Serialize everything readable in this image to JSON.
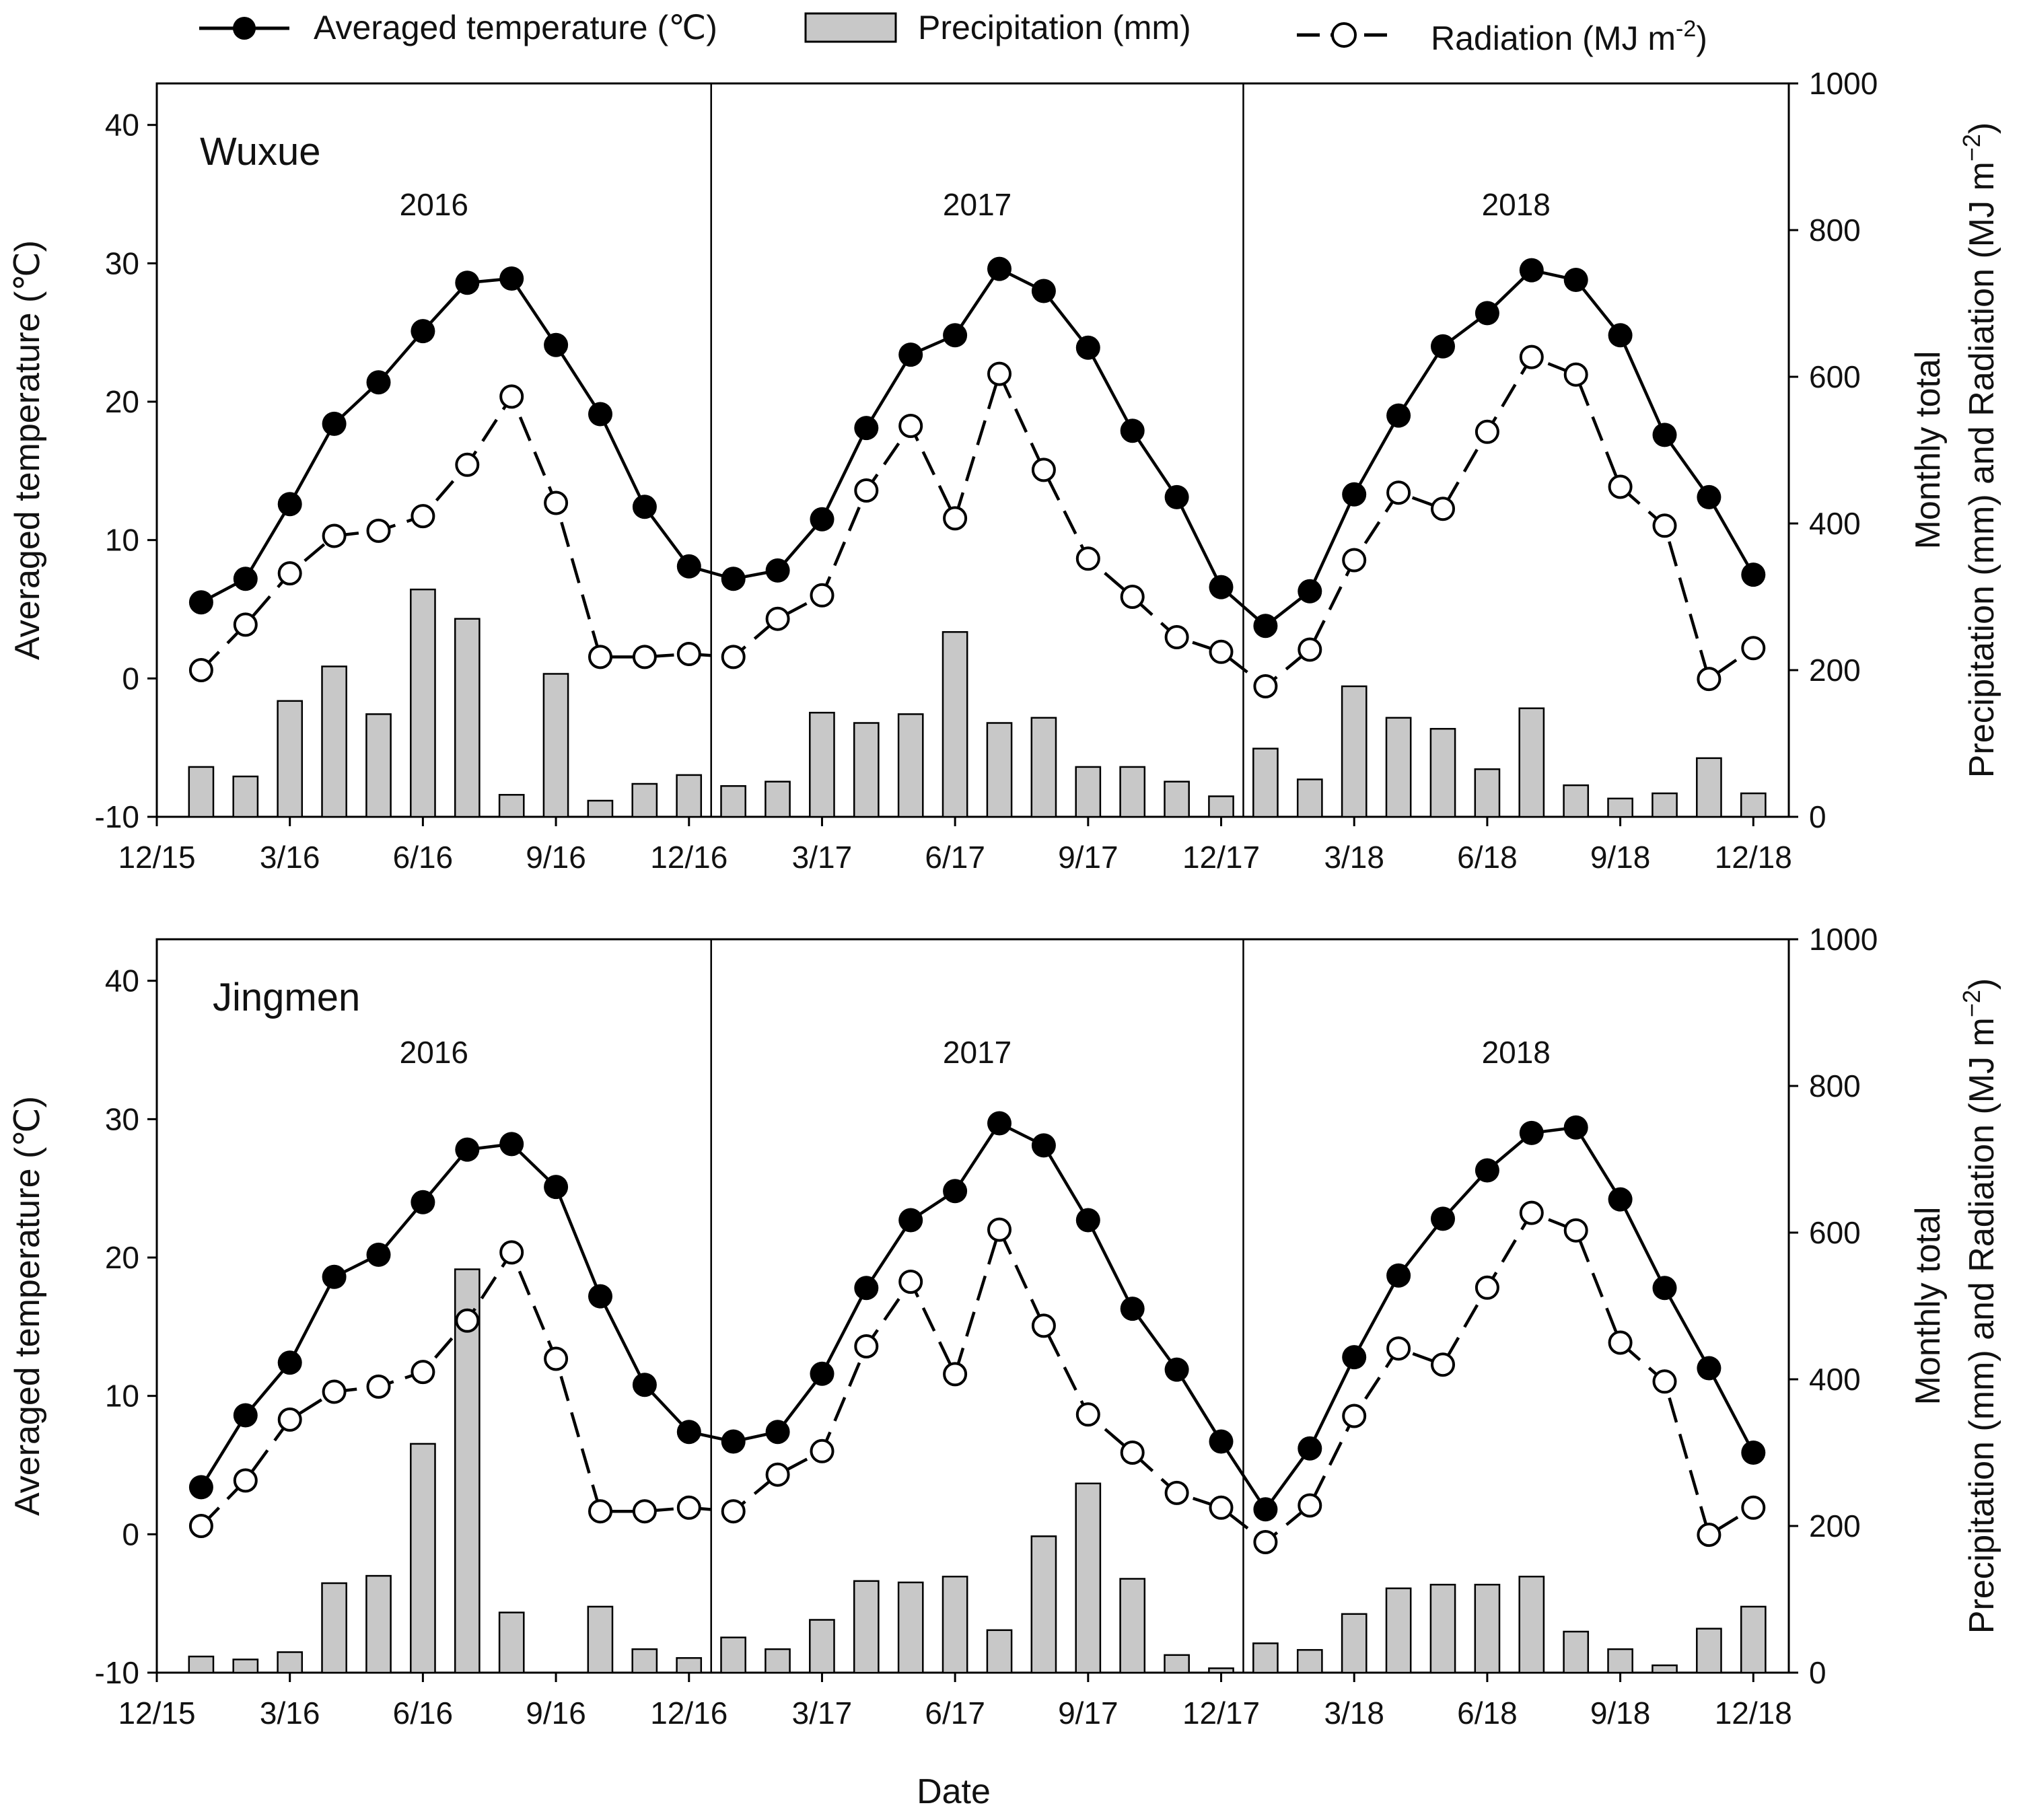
{
  "legend": {
    "temperature": "Averaged temperature (℃)",
    "precipitation": "Precipitation (mm)",
    "radiation_text": "Radiation (MJ m",
    "radiation_sup": "-2",
    "radiation_close": ")"
  },
  "axes": {
    "left_title": "Averaged temperature (℃)",
    "right_title_line1": "Monthly total",
    "right_title_line2": "Precipitation (mm) and Radiation (MJ m",
    "right_title_sup": "−2",
    "right_title_close": ")",
    "x_title": "Date"
  },
  "colors": {
    "bar_fill": "#c8c8c8",
    "bar_stroke": "#000000",
    "temperature_marker": "#000000",
    "radiation_marker": "#ffffff",
    "line": "#000000"
  },
  "chart_data": [
    {
      "type": "bar+line",
      "panel": "Wuxue",
      "title": "Wuxue",
      "years": [
        "2016",
        "2017",
        "2018"
      ],
      "xlabel": "Date",
      "x_ticks": [
        {
          "label": "12/15",
          "month_index": 0
        },
        {
          "label": "3/16",
          "month_index": 3
        },
        {
          "label": "6/16",
          "month_index": 6
        },
        {
          "label": "9/16",
          "month_index": 9
        },
        {
          "label": "12/16",
          "month_index": 12
        },
        {
          "label": "3/17",
          "month_index": 15
        },
        {
          "label": "6/17",
          "month_index": 18
        },
        {
          "label": "9/17",
          "month_index": 21
        },
        {
          "label": "12/17",
          "month_index": 24
        },
        {
          "label": "3/18",
          "month_index": 27
        },
        {
          "label": "6/18",
          "month_index": 30
        },
        {
          "label": "9/18",
          "month_index": 33
        },
        {
          "label": "12/18",
          "month_index": 36
        }
      ],
      "x_range": [
        0,
        36.8
      ],
      "year_boundaries": [
        12.5,
        24.5
      ],
      "y_left": {
        "label": "Averaged temperature (℃)",
        "range": [
          -10,
          43
        ],
        "ticks": [
          -10,
          0,
          10,
          20,
          30,
          40
        ]
      },
      "y_right": {
        "label": "Monthly total Precipitation (mm) and Radiation (MJ m−2)",
        "range": [
          0,
          1000
        ],
        "ticks": [
          0,
          200,
          400,
          600,
          800,
          1000
        ]
      },
      "months": [
        1,
        2,
        3,
        4,
        5,
        6,
        7,
        8,
        9,
        10,
        11,
        12,
        13,
        14,
        15,
        16,
        17,
        18,
        19,
        20,
        21,
        22,
        23,
        24,
        25,
        26,
        27,
        28,
        29,
        30,
        31,
        32,
        33,
        34,
        35,
        36
      ],
      "series": [
        {
          "name": "Averaged temperature (℃)",
          "axis": "left",
          "style": "filled-circle-solid",
          "values": [
            5.5,
            7.2,
            12.6,
            18.4,
            21.4,
            25.1,
            28.6,
            28.9,
            24.1,
            19.1,
            12.4,
            8.1,
            7.2,
            7.8,
            11.5,
            18.1,
            23.4,
            24.8,
            29.6,
            28.0,
            23.9,
            17.9,
            13.1,
            6.6,
            3.8,
            6.3,
            13.3,
            19.0,
            24.0,
            26.4,
            29.5,
            28.8,
            24.8,
            17.6,
            13.1,
            7.5
          ]
        },
        {
          "name": "Precipitation (mm)",
          "axis": "right",
          "style": "bar",
          "values": [
            68,
            55,
            158,
            205,
            140,
            310,
            270,
            30,
            195,
            22,
            45,
            57,
            42,
            48,
            142,
            128,
            140,
            252,
            128,
            135,
            68,
            68,
            48,
            28,
            93,
            51,
            178,
            135,
            120,
            65,
            148,
            43,
            25,
            32,
            80,
            32
          ]
        },
        {
          "name": "Radiation (MJ m-2)",
          "axis": "right",
          "style": "open-circle-dashed",
          "values": [
            200,
            262,
            332,
            383,
            390,
            410,
            480,
            573,
            428,
            218,
            218,
            222,
            218,
            270,
            302,
            445,
            533,
            407,
            604,
            473,
            352,
            300,
            245,
            225,
            178,
            228,
            350,
            442,
            420,
            525,
            627,
            603,
            450,
            397,
            188,
            230
          ]
        }
      ]
    },
    {
      "type": "bar+line",
      "panel": "Jingmen",
      "title": "Jingmen",
      "years": [
        "2016",
        "2017",
        "2018"
      ],
      "xlabel": "Date",
      "x_ticks": [
        {
          "label": "12/15",
          "month_index": 0
        },
        {
          "label": "3/16",
          "month_index": 3
        },
        {
          "label": "6/16",
          "month_index": 6
        },
        {
          "label": "9/16",
          "month_index": 9
        },
        {
          "label": "12/16",
          "month_index": 12
        },
        {
          "label": "3/17",
          "month_index": 15
        },
        {
          "label": "6/17",
          "month_index": 18
        },
        {
          "label": "9/17",
          "month_index": 21
        },
        {
          "label": "12/17",
          "month_index": 24
        },
        {
          "label": "3/18",
          "month_index": 27
        },
        {
          "label": "6/18",
          "month_index": 30
        },
        {
          "label": "9/18",
          "month_index": 33
        },
        {
          "label": "12/18",
          "month_index": 36
        }
      ],
      "x_range": [
        0,
        36.8
      ],
      "year_boundaries": [
        12.5,
        24.5
      ],
      "y_left": {
        "label": "Averaged temperature (℃)",
        "range": [
          -10,
          43
        ],
        "ticks": [
          -10,
          0,
          10,
          20,
          30,
          40
        ]
      },
      "y_right": {
        "label": "Monthly total Precipitation (mm) and Radiation (MJ m−2)",
        "range": [
          0,
          1000
        ],
        "ticks": [
          0,
          200,
          400,
          600,
          800,
          1000
        ]
      },
      "months": [
        1,
        2,
        3,
        4,
        5,
        6,
        7,
        8,
        9,
        10,
        11,
        12,
        13,
        14,
        15,
        16,
        17,
        18,
        19,
        20,
        21,
        22,
        23,
        24,
        25,
        26,
        27,
        28,
        29,
        30,
        31,
        32,
        33,
        34,
        35,
        36
      ],
      "series": [
        {
          "name": "Averaged temperature (℃)",
          "axis": "left",
          "style": "filled-circle-solid",
          "values": [
            3.4,
            8.6,
            12.4,
            18.6,
            20.2,
            24.0,
            27.8,
            28.2,
            25.1,
            17.2,
            10.8,
            7.4,
            6.7,
            7.4,
            11.6,
            17.8,
            22.7,
            24.8,
            29.7,
            28.1,
            22.7,
            16.3,
            11.9,
            6.7,
            1.8,
            6.2,
            12.8,
            18.7,
            22.8,
            26.3,
            29.0,
            29.4,
            24.2,
            17.8,
            12.0,
            5.9
          ]
        },
        {
          "name": "Precipitation (mm)",
          "axis": "right",
          "style": "bar",
          "values": [
            22,
            18,
            28,
            122,
            132,
            312,
            550,
            82,
            0,
            90,
            32,
            20,
            48,
            32,
            72,
            125,
            123,
            131,
            58,
            186,
            258,
            128,
            24,
            6,
            40,
            31,
            80,
            115,
            120,
            120,
            131,
            56,
            32,
            10,
            60,
            90
          ]
        },
        {
          "name": "Radiation (MJ m-2)",
          "axis": "right",
          "style": "open-circle-dashed",
          "values": [
            200,
            262,
            345,
            383,
            390,
            410,
            480,
            573,
            428,
            220,
            220,
            225,
            220,
            270,
            302,
            445,
            533,
            407,
            604,
            473,
            352,
            300,
            245,
            225,
            178,
            228,
            350,
            442,
            420,
            525,
            627,
            603,
            450,
            397,
            188,
            225
          ]
        }
      ]
    }
  ]
}
